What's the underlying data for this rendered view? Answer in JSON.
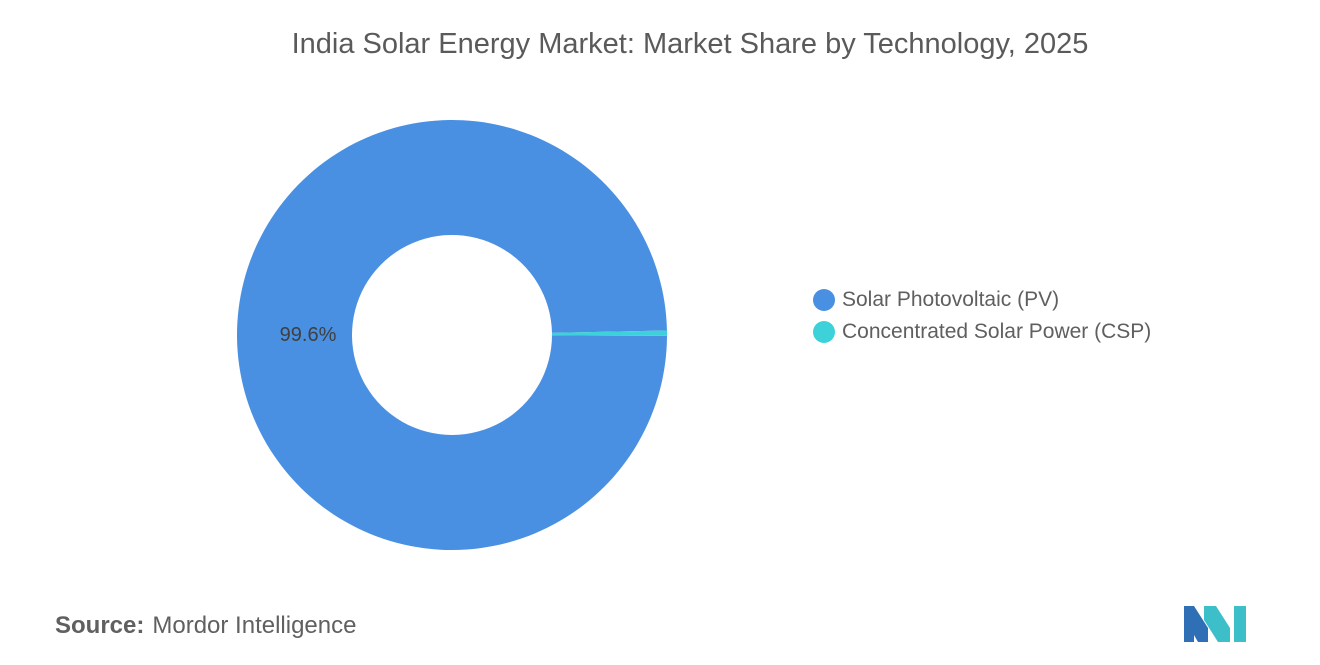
{
  "title": "India Solar Energy Market: Market Share by Technology, 2025",
  "chart_data": {
    "type": "pie",
    "donut": true,
    "title": "India Solar Energy Market: Market Share by Technology, 2025",
    "series": [
      {
        "name": "Solar Photovoltaic (PV)",
        "value": 99.6,
        "color": "#4a90e2"
      },
      {
        "name": "Concentrated Solar Power (CSP)",
        "value": 0.4,
        "color": "#3dd1d9"
      }
    ],
    "data_labels": [
      "99.6%",
      ""
    ],
    "legend_position": "right"
  },
  "source": {
    "label": "Source:",
    "text": "Mordor Intelligence"
  },
  "logo_colors": [
    "#2e6fb5",
    "#3dbfc9"
  ]
}
